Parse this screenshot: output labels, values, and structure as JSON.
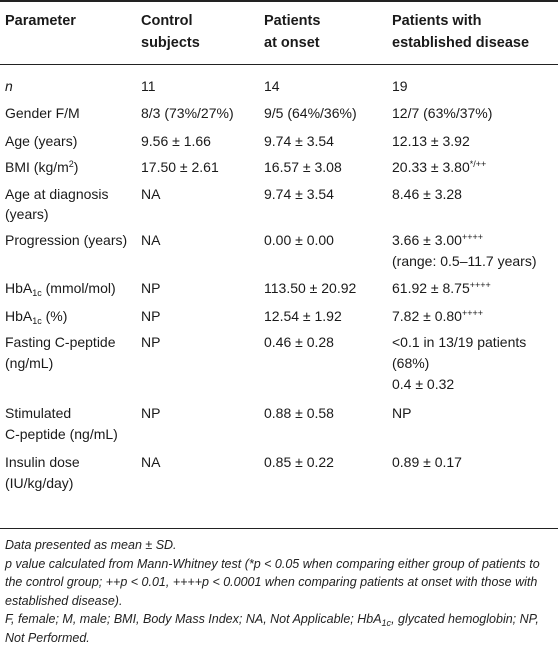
{
  "headers": {
    "parameter": "Parameter",
    "control_l1": "Control",
    "control_l2": "subjects",
    "onset_l1": "Patients",
    "onset_l2": "at onset",
    "est_l1": "Patients with",
    "est_l2": "established disease"
  },
  "rows": {
    "n": {
      "label": "n",
      "control": "11",
      "onset": "14",
      "established": "19"
    },
    "gender": {
      "label": "Gender F/M",
      "control": "8/3 (73%/27%)",
      "onset": "9/5 (64%/36%)",
      "established": "12/7 (63%/37%)"
    },
    "age": {
      "label": "Age (years)",
      "control": "9.56 ± 1.66",
      "onset": "9.74 ± 3.54",
      "established": "12.13 ± 3.92"
    },
    "bmi": {
      "label_pre": "BMI (kg/m",
      "label_sup": "2",
      "label_post": ")",
      "control": "17.50 ± 2.61",
      "onset": "16.57 ± 3.08",
      "established": "20.33 ± 3.80",
      "established_sup": "*/++"
    },
    "age_dx": {
      "label_l1": "Age at diagnosis",
      "label_l2": "(years)",
      "control": "NA",
      "onset": "9.74 ± 3.54",
      "established": "8.46 ± 3.28"
    },
    "progression": {
      "label": "Progression (years)",
      "control": "NA",
      "onset": "0.00 ± 0.00",
      "established": "3.66 ± 3.00",
      "established_sup": "++++",
      "established_l2": "(range: 0.5–11.7 years)"
    },
    "hba1c_mmol": {
      "label_pre": "HbA",
      "label_sub": "1c",
      "label_post": " (mmol/mol)",
      "control": "NP",
      "onset": "113.50 ± 20.92",
      "established": "61.92 ± 8.75",
      "established_sup": "++++"
    },
    "hba1c_pct": {
      "label_pre": "HbA",
      "label_sub": "1c",
      "label_post": " (%)",
      "control": "NP",
      "onset": "12.54 ± 1.92",
      "established": "7.82 ± 0.80",
      "established_sup": "++++"
    },
    "fasting_cpep": {
      "label_l1": "Fasting C-peptide",
      "label_l2": "(ng/mL)",
      "control": "NP",
      "onset": "0.46 ± 0.28",
      "established_l1": "<0.1 in 13/19 patients",
      "established_l2": "(68%)",
      "established_l3": "0.4 ± 0.32"
    },
    "stim_cpep": {
      "label_l1": "Stimulated",
      "label_l2": "C-peptide (ng/mL)",
      "control": "NP",
      "onset": "0.88 ± 0.58",
      "established": "NP"
    },
    "insulin": {
      "label_l1": "Insulin dose",
      "label_l2": "(IU/kg/day)",
      "control": "NA",
      "onset": "0.85 ± 0.22",
      "established": "0.89 ± 0.17"
    }
  },
  "notes": {
    "line1": "Data presented as mean ± SD.",
    "line2": "p value calculated from Mann-Whitney test (*p < 0.05 when comparing either group of patients to the control group; ++p < 0.01, ++++p < 0.0001 when comparing patients at onset with those with established disease).",
    "n2_pre": "F, female; M, male; BMI, Body Mass Index; NA, Not Applicable; HbA",
    "n2_sub": "1c",
    "n2_post": ", glycated hemoglobin; NP, Not Performed."
  }
}
